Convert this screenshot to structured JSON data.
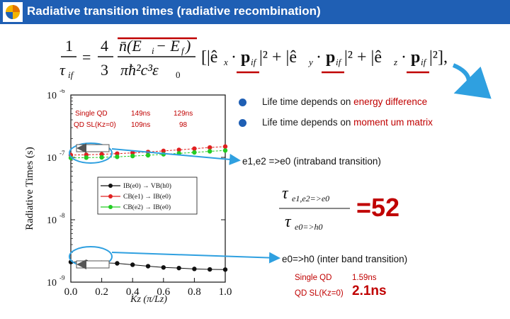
{
  "header": {
    "title": "Radiative transition times (radiative recombination)"
  },
  "bullets": [
    {
      "prefix": "Life time depends on ",
      "highlight": "energy difference"
    },
    {
      "prefix": "Life time depends on ",
      "highlight": "moment um matrix"
    }
  ],
  "notes": {
    "intraband": "e1,e2 =>e0 (intraband transition)",
    "interband": "e0=>h0 (inter band transition)"
  },
  "ratio": {
    "value": "=52"
  },
  "interband_values": {
    "single_label": "Single QD",
    "single_value": "1.59ns",
    "sl_label": "QD SL(Kz=0)",
    "sl_value": "2.1ns"
  },
  "plot_labels": {
    "single_label": "Single QD",
    "sl_label": "QD SL(Kz=0)",
    "col1_single": "149ns",
    "col1_sl": "109ns",
    "col2_single": "129ns",
    "col2_sl": "98"
  },
  "colors": {
    "accent": "#1f5fb4",
    "highlight": "#c00000"
  },
  "chart_data": {
    "type": "line",
    "xlabel": "Kz (π/Lz)",
    "ylabel": "Radiative Times (s)",
    "xticks": [
      "0.0",
      "0.2",
      "0.4",
      "0.6",
      "0.8",
      "1.0"
    ],
    "yticks": [
      "10-6",
      "10-7",
      "10-8",
      "10-9"
    ],
    "xlim": [
      0,
      1.0
    ],
    "ylim": [
      1e-09,
      1e-06
    ],
    "yscale": "log",
    "series": [
      {
        "name": "IB(e0) → VB(h0)",
        "color": "#111111",
        "x": [
          0.0,
          0.1,
          0.2,
          0.3,
          0.4,
          0.5,
          0.6,
          0.7,
          0.8,
          0.9,
          1.0
        ],
        "y": [
          2.1e-09,
          2.1e-09,
          2.05e-09,
          2e-09,
          1.9e-09,
          1.8e-09,
          1.72e-09,
          1.68e-09,
          1.63e-09,
          1.6e-09,
          1.59e-09
        ]
      },
      {
        "name": "CB(e1) → IB(e0)",
        "color": "#e02020",
        "x": [
          0.0,
          0.1,
          0.2,
          0.3,
          0.4,
          0.5,
          0.6,
          0.7,
          0.8,
          0.9,
          1.0
        ],
        "y": [
          1.09e-07,
          1.1e-07,
          1.12e-07,
          1.15e-07,
          1.18e-07,
          1.22e-07,
          1.27e-07,
          1.32e-07,
          1.38e-07,
          1.44e-07,
          1.49e-07
        ]
      },
      {
        "name": "CB(e2) → IB(e0)",
        "color": "#22cc22",
        "x": [
          0.0,
          0.1,
          0.2,
          0.3,
          0.4,
          0.5,
          0.6,
          0.7,
          0.8,
          0.9,
          1.0
        ],
        "y": [
          9.8e-08,
          9.9e-08,
          1e-07,
          1.02e-07,
          1.05e-07,
          1.08e-07,
          1.12e-07,
          1.16e-07,
          1.2e-07,
          1.25e-07,
          1.29e-07
        ]
      }
    ]
  }
}
